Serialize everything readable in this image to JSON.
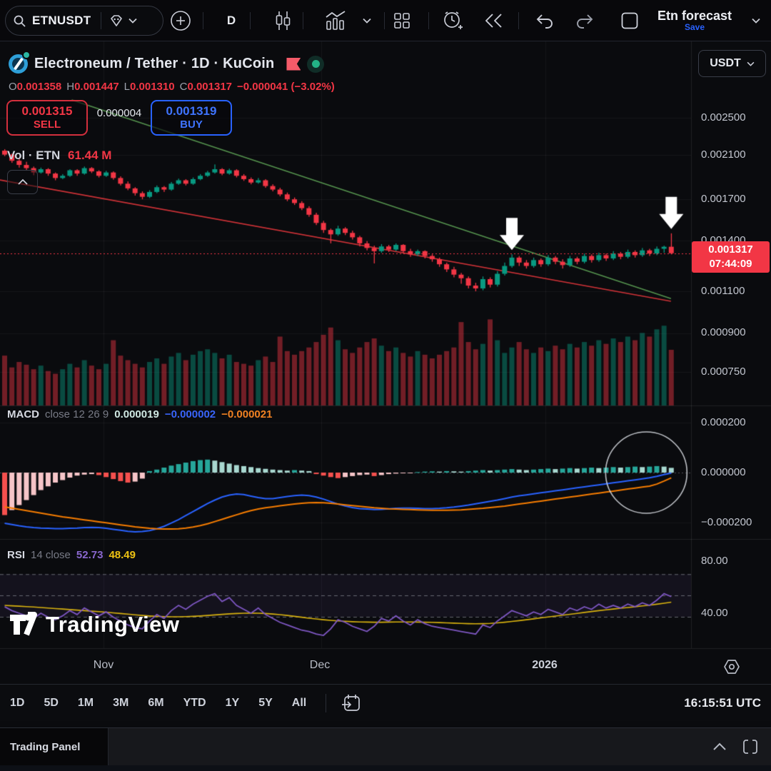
{
  "toolbar": {
    "symbol": "ETNUSDT",
    "interval": "D",
    "layout_name": "Etn forecast",
    "save_label": "Save"
  },
  "header": {
    "title": "Electroneum / Tether · 1D · KuCoin"
  },
  "ohlc": {
    "o_label": "O",
    "o": "0.001358",
    "h_label": "H",
    "h": "0.001447",
    "l_label": "L",
    "l": "0.001310",
    "c_label": "C",
    "c": "0.001317",
    "change": "−0.000041 (−3.02%)"
  },
  "order_panel": {
    "sell_price": "0.001315",
    "sell_label": "SELL",
    "spread": "0.000004",
    "buy_price": "0.001319",
    "buy_label": "BUY"
  },
  "volume_row": {
    "label": "Vol · ETN",
    "value": "61.44 M"
  },
  "macd_row": {
    "name": "MACD",
    "params": "close 12 26 9",
    "hist_value": "0.000019",
    "macd_value": "−0.000002",
    "signal_value": "−0.000021"
  },
  "rsi_row": {
    "name": "RSI",
    "params": "14 close",
    "rsi_value": "52.73",
    "ma_value": "48.49"
  },
  "price_axis": {
    "currency": "USDT",
    "labels": [
      "0.002500",
      "0.002100",
      "0.001700",
      "0.001400",
      "0.001100",
      "0.000900",
      "0.000750"
    ],
    "last_price": "0.001317",
    "countdown": "07:44:09"
  },
  "macd_axis": [
    "0.000200",
    "0.000000",
    "−0.000200"
  ],
  "rsi_axis": [
    "80.00",
    "40.00"
  ],
  "time_axis": [
    "Nov",
    "Dec",
    "2026"
  ],
  "range_toolbar": {
    "ranges": [
      "1D",
      "5D",
      "1M",
      "3M",
      "6M",
      "YTD",
      "1Y",
      "5Y",
      "All"
    ],
    "clock": "16:15:51 UTC"
  },
  "trading_panel": {
    "label": "Trading Panel"
  },
  "watermark": "TradingView",
  "colors": {
    "up": "#089981",
    "down": "#f23645",
    "vol_up": "rgba(8,153,129,0.45)",
    "vol_down": "rgba(242,54,69,0.45)",
    "buy_blue": "#2962ff",
    "macd_line": "#2962ff",
    "signal_line": "#f57c00",
    "hist_pos": "#26a69a",
    "hist_pos_fade": "#a8d8d0",
    "hist_neg": "#f5504e",
    "hist_neg_fade": "#f6c5c8",
    "rsi_line": "#7e57c2",
    "rsi_ma": "#d9b30f",
    "rsi_band_fill": "rgba(126,87,194,0.09)",
    "trend_green": "#55934e",
    "trend_red": "#cf3237",
    "price_line_red": "#f23645",
    "badge_bg": "#f23645",
    "arrow_white": "#ffffff",
    "circle_stroke": "rgba(221,224,230,0.85)"
  },
  "chart_data": {
    "type": "candlestick",
    "title": "ETNUSDT 1D KuCoin",
    "note": "candle and MACD values are in 1e-6 USDT units; candles are [open,high,low,close]",
    "month_marks": [
      {
        "label": "Nov",
        "index": 14
      },
      {
        "label": "Dec",
        "index": 44
      },
      {
        "label": "2026",
        "index": 75
      }
    ],
    "price_grid": [
      0.0025,
      0.0021,
      0.0017,
      0.0014,
      0.0011,
      0.0009,
      0.00075
    ],
    "current_price": 0.001317,
    "candles": [
      [
        2140,
        2155,
        2085,
        2100
      ],
      [
        2100,
        2110,
        2020,
        2040
      ],
      [
        2040,
        2060,
        1975,
        2000
      ],
      [
        2000,
        2030,
        1950,
        1970
      ],
      [
        1970,
        1985,
        1905,
        1930
      ],
      [
        1930,
        1975,
        1920,
        1960
      ],
      [
        1960,
        1970,
        1900,
        1920
      ],
      [
        1920,
        1930,
        1860,
        1880
      ],
      [
        1880,
        1915,
        1870,
        1900
      ],
      [
        1900,
        1960,
        1890,
        1950
      ],
      [
        1950,
        1960,
        1900,
        1920
      ],
      [
        1920,
        1985,
        1910,
        1970
      ],
      [
        1970,
        1980,
        1925,
        1940
      ],
      [
        1940,
        1950,
        1885,
        1900
      ],
      [
        1900,
        1945,
        1890,
        1930
      ],
      [
        1930,
        1940,
        1865,
        1880
      ],
      [
        1880,
        1895,
        1815,
        1830
      ],
      [
        1830,
        1850,
        1775,
        1790
      ],
      [
        1790,
        1800,
        1730,
        1750
      ],
      [
        1750,
        1765,
        1700,
        1720
      ],
      [
        1720,
        1775,
        1710,
        1760
      ],
      [
        1760,
        1815,
        1750,
        1800
      ],
      [
        1800,
        1810,
        1760,
        1780
      ],
      [
        1780,
        1845,
        1770,
        1830
      ],
      [
        1830,
        1875,
        1820,
        1860
      ],
      [
        1860,
        1870,
        1815,
        1830
      ],
      [
        1830,
        1885,
        1820,
        1870
      ],
      [
        1870,
        1915,
        1860,
        1900
      ],
      [
        1900,
        1945,
        1890,
        1930
      ],
      [
        1930,
        2005,
        1920,
        1960
      ],
      [
        1960,
        1970,
        1905,
        1920
      ],
      [
        1920,
        1965,
        1910,
        1950
      ],
      [
        1950,
        1960,
        1885,
        1900
      ],
      [
        1900,
        1915,
        1855,
        1870
      ],
      [
        1870,
        1885,
        1825,
        1840
      ],
      [
        1840,
        1880,
        1830,
        1860
      ],
      [
        1860,
        1870,
        1795,
        1810
      ],
      [
        1810,
        1825,
        1765,
        1780
      ],
      [
        1780,
        1795,
        1725,
        1740
      ],
      [
        1740,
        1755,
        1685,
        1700
      ],
      [
        1700,
        1715,
        1655,
        1670
      ],
      [
        1670,
        1685,
        1615,
        1630
      ],
      [
        1630,
        1645,
        1565,
        1580
      ],
      [
        1580,
        1595,
        1505,
        1520
      ],
      [
        1520,
        1535,
        1450,
        1470
      ],
      [
        1470,
        1480,
        1380,
        1440
      ],
      [
        1440,
        1500,
        1430,
        1480
      ],
      [
        1480,
        1490,
        1435,
        1450
      ],
      [
        1450,
        1465,
        1405,
        1420
      ],
      [
        1420,
        1430,
        1360,
        1380
      ],
      [
        1380,
        1395,
        1335,
        1350
      ],
      [
        1350,
        1365,
        1255,
        1330
      ],
      [
        1330,
        1375,
        1320,
        1360
      ],
      [
        1360,
        1370,
        1325,
        1340
      ],
      [
        1340,
        1380,
        1330,
        1370
      ],
      [
        1370,
        1375,
        1320,
        1330
      ],
      [
        1330,
        1345,
        1295,
        1310
      ],
      [
        1310,
        1340,
        1300,
        1330
      ],
      [
        1330,
        1335,
        1285,
        1300
      ],
      [
        1300,
        1310,
        1265,
        1280
      ],
      [
        1280,
        1290,
        1235,
        1250
      ],
      [
        1250,
        1260,
        1205,
        1220
      ],
      [
        1220,
        1235,
        1175,
        1190
      ],
      [
        1190,
        1200,
        1140,
        1170
      ],
      [
        1170,
        1180,
        1115,
        1130
      ],
      [
        1130,
        1145,
        1100,
        1115
      ],
      [
        1115,
        1180,
        1105,
        1165
      ],
      [
        1165,
        1175,
        1120,
        1135
      ],
      [
        1135,
        1210,
        1125,
        1195
      ],
      [
        1195,
        1260,
        1185,
        1240
      ],
      [
        1240,
        1310,
        1230,
        1290
      ],
      [
        1290,
        1300,
        1240,
        1260
      ],
      [
        1260,
        1275,
        1225,
        1240
      ],
      [
        1240,
        1290,
        1230,
        1275
      ],
      [
        1275,
        1285,
        1235,
        1250
      ],
      [
        1250,
        1305,
        1240,
        1290
      ],
      [
        1290,
        1300,
        1250,
        1265
      ],
      [
        1265,
        1280,
        1225,
        1245
      ],
      [
        1245,
        1300,
        1235,
        1285
      ],
      [
        1285,
        1295,
        1250,
        1265
      ],
      [
        1265,
        1315,
        1255,
        1300
      ],
      [
        1300,
        1310,
        1260,
        1275
      ],
      [
        1275,
        1320,
        1265,
        1305
      ],
      [
        1305,
        1315,
        1270,
        1285
      ],
      [
        1285,
        1330,
        1275,
        1315
      ],
      [
        1315,
        1325,
        1280,
        1295
      ],
      [
        1295,
        1340,
        1285,
        1325
      ],
      [
        1325,
        1335,
        1290,
        1305
      ],
      [
        1305,
        1350,
        1295,
        1335
      ],
      [
        1335,
        1345,
        1300,
        1315
      ],
      [
        1315,
        1360,
        1305,
        1345
      ],
      [
        1345,
        1365,
        1320,
        1358
      ],
      [
        1358,
        1447,
        1310,
        1317
      ]
    ],
    "volume_m": [
      55,
      42,
      48,
      45,
      40,
      44,
      38,
      35,
      40,
      46,
      42,
      50,
      44,
      40,
      46,
      72,
      55,
      50,
      46,
      42,
      48,
      52,
      46,
      54,
      58,
      50,
      56,
      60,
      62,
      58,
      52,
      56,
      48,
      46,
      44,
      50,
      54,
      48,
      76,
      60,
      56,
      60,
      64,
      70,
      78,
      86,
      72,
      62,
      58,
      64,
      70,
      74,
      66,
      60,
      64,
      58,
      54,
      60,
      56,
      52,
      56,
      60,
      64,
      92,
      70,
      62,
      68,
      95,
      72,
      58,
      64,
      70,
      62,
      58,
      64,
      60,
      66,
      62,
      68,
      64,
      70,
      66,
      72,
      68,
      74,
      70,
      76,
      72,
      80,
      76,
      84,
      88,
      61.44
    ],
    "macd": {
      "hist": [
        -170,
        -150,
        -130,
        -110,
        -90,
        -70,
        -55,
        -40,
        -30,
        -20,
        -12,
        -8,
        -6,
        -10,
        -18,
        -26,
        -34,
        -40,
        -36,
        -24,
        6,
        12,
        20,
        28,
        34,
        40,
        46,
        50,
        52,
        48,
        42,
        36,
        30,
        26,
        22,
        18,
        15,
        12,
        10,
        8,
        10,
        8,
        6,
        -6,
        -12,
        -18,
        -22,
        -18,
        -14,
        -10,
        -8,
        -14,
        -10,
        -6,
        -4,
        -3,
        -2,
        2,
        4,
        5,
        4,
        6,
        5,
        4,
        6,
        8,
        10,
        8,
        10,
        12,
        14,
        12,
        10,
        12,
        14,
        16,
        14,
        16,
        18,
        16,
        18,
        20,
        18,
        20,
        22,
        20,
        22,
        24,
        22,
        24,
        26,
        24,
        19
      ],
      "macd": [
        -203,
        -208,
        -213,
        -217,
        -220,
        -222,
        -223,
        -224,
        -224,
        -223,
        -222,
        -220,
        -219,
        -220,
        -223,
        -227,
        -231,
        -235,
        -237,
        -236,
        -232,
        -225,
        -215,
        -202,
        -188,
        -172,
        -156,
        -140,
        -124,
        -110,
        -98,
        -90,
        -86,
        -88,
        -94,
        -100,
        -104,
        -104,
        -100,
        -96,
        -92,
        -90,
        -92,
        -98,
        -106,
        -116,
        -126,
        -134,
        -140,
        -144,
        -146,
        -148,
        -147,
        -145,
        -143,
        -142,
        -142,
        -143,
        -144,
        -144,
        -143,
        -141,
        -138,
        -134,
        -130,
        -125,
        -120,
        -115,
        -110,
        -104,
        -98,
        -93,
        -89,
        -85,
        -81,
        -77,
        -73,
        -69,
        -65,
        -61,
        -57,
        -53,
        -49,
        -45,
        -41,
        -37,
        -33,
        -29,
        -25,
        -21,
        -15,
        -8,
        -2
      ],
      "signal": [
        -137,
        -142,
        -147,
        -152,
        -157,
        -162,
        -167,
        -172,
        -177,
        -181,
        -185,
        -189,
        -193,
        -197,
        -201,
        -205,
        -209,
        -213,
        -217,
        -220,
        -223,
        -225,
        -226,
        -226,
        -225,
        -222,
        -218,
        -212,
        -205,
        -196,
        -187,
        -178,
        -169,
        -160,
        -152,
        -146,
        -141,
        -137,
        -133,
        -129,
        -126,
        -123,
        -121,
        -120,
        -121,
        -123,
        -126,
        -129,
        -132,
        -135,
        -138,
        -141,
        -143,
        -145,
        -146,
        -147,
        -148,
        -149,
        -150,
        -151,
        -151,
        -151,
        -150,
        -149,
        -147,
        -145,
        -143,
        -140,
        -137,
        -134,
        -130,
        -126,
        -122,
        -118,
        -114,
        -110,
        -106,
        -102,
        -98,
        -94,
        -90,
        -86,
        -82,
        -78,
        -74,
        -70,
        -66,
        -62,
        -58,
        -54,
        -46,
        -34,
        -21
      ]
    },
    "rsi": {
      "rsi": [
        45,
        42,
        40,
        38,
        36,
        40,
        37,
        35,
        38,
        42,
        39,
        44,
        41,
        38,
        41,
        37,
        34,
        31,
        29,
        28,
        34,
        39,
        36,
        42,
        46,
        43,
        47,
        50,
        53,
        55,
        49,
        52,
        46,
        43,
        40,
        44,
        39,
        36,
        33,
        31,
        29,
        27,
        26,
        24,
        23,
        28,
        35,
        33,
        30,
        28,
        26,
        30,
        36,
        34,
        38,
        34,
        31,
        35,
        32,
        30,
        29,
        28,
        27,
        26,
        25,
        24,
        31,
        29,
        34,
        38,
        42,
        40,
        38,
        41,
        39,
        43,
        41,
        39,
        44,
        42,
        45,
        43,
        47,
        44,
        46,
        44,
        47,
        45,
        48,
        46,
        50,
        55,
        52.73
      ],
      "ma": [
        46,
        45.7,
        45.4,
        45.1,
        44.8,
        44.4,
        44,
        43.6,
        43.2,
        42.8,
        42.4,
        42,
        41.6,
        41.2,
        40.8,
        40.3,
        39.8,
        39.3,
        38.8,
        38.3,
        37.9,
        37.6,
        37.4,
        37.3,
        37.3,
        37.4,
        37.6,
        37.9,
        38.3,
        38.7,
        39.1,
        39.5,
        39.8,
        40,
        40.1,
        40,
        39.8,
        39.4,
        38.9,
        38.3,
        37.6,
        36.9,
        36.2,
        35.6,
        35,
        34.5,
        34.1,
        33.8,
        33.5,
        33.3,
        33.2,
        33.1,
        33.1,
        33.2,
        33.3,
        33.3,
        33.3,
        33.2,
        33.1,
        33,
        32.8,
        32.6,
        32.4,
        32.2,
        32,
        31.9,
        32,
        32.2,
        32.6,
        33.1,
        33.7,
        34.3,
        35,
        35.7,
        36.4,
        37.1,
        37.8,
        38.5,
        39.2,
        39.9,
        40.6,
        41.3,
        42,
        42.6,
        43.2,
        43.8,
        44.4,
        45,
        45.6,
        46.2,
        46.9,
        47.7,
        48.49
      ],
      "upper_band": 70,
      "lower_band": 30
    },
    "trendlines": [
      {
        "name": "descending-resistance",
        "color_key": "trend_green",
        "p1": {
          "index": 9.6,
          "price": 0.00272
        },
        "p2": {
          "index": 92.3,
          "price": 0.001063
        }
      },
      {
        "name": "descending-support",
        "color_key": "trend_red",
        "p1": {
          "index": -0.3,
          "price": 0.001863
        },
        "p2": {
          "index": 92.3,
          "price": 0.001049
        }
      }
    ],
    "annotations": {
      "arrows_down_at_index": [
        70,
        92
      ],
      "circle": {
        "center_index": 88.9,
        "macd_value": 0,
        "radius_px": 57
      }
    }
  }
}
